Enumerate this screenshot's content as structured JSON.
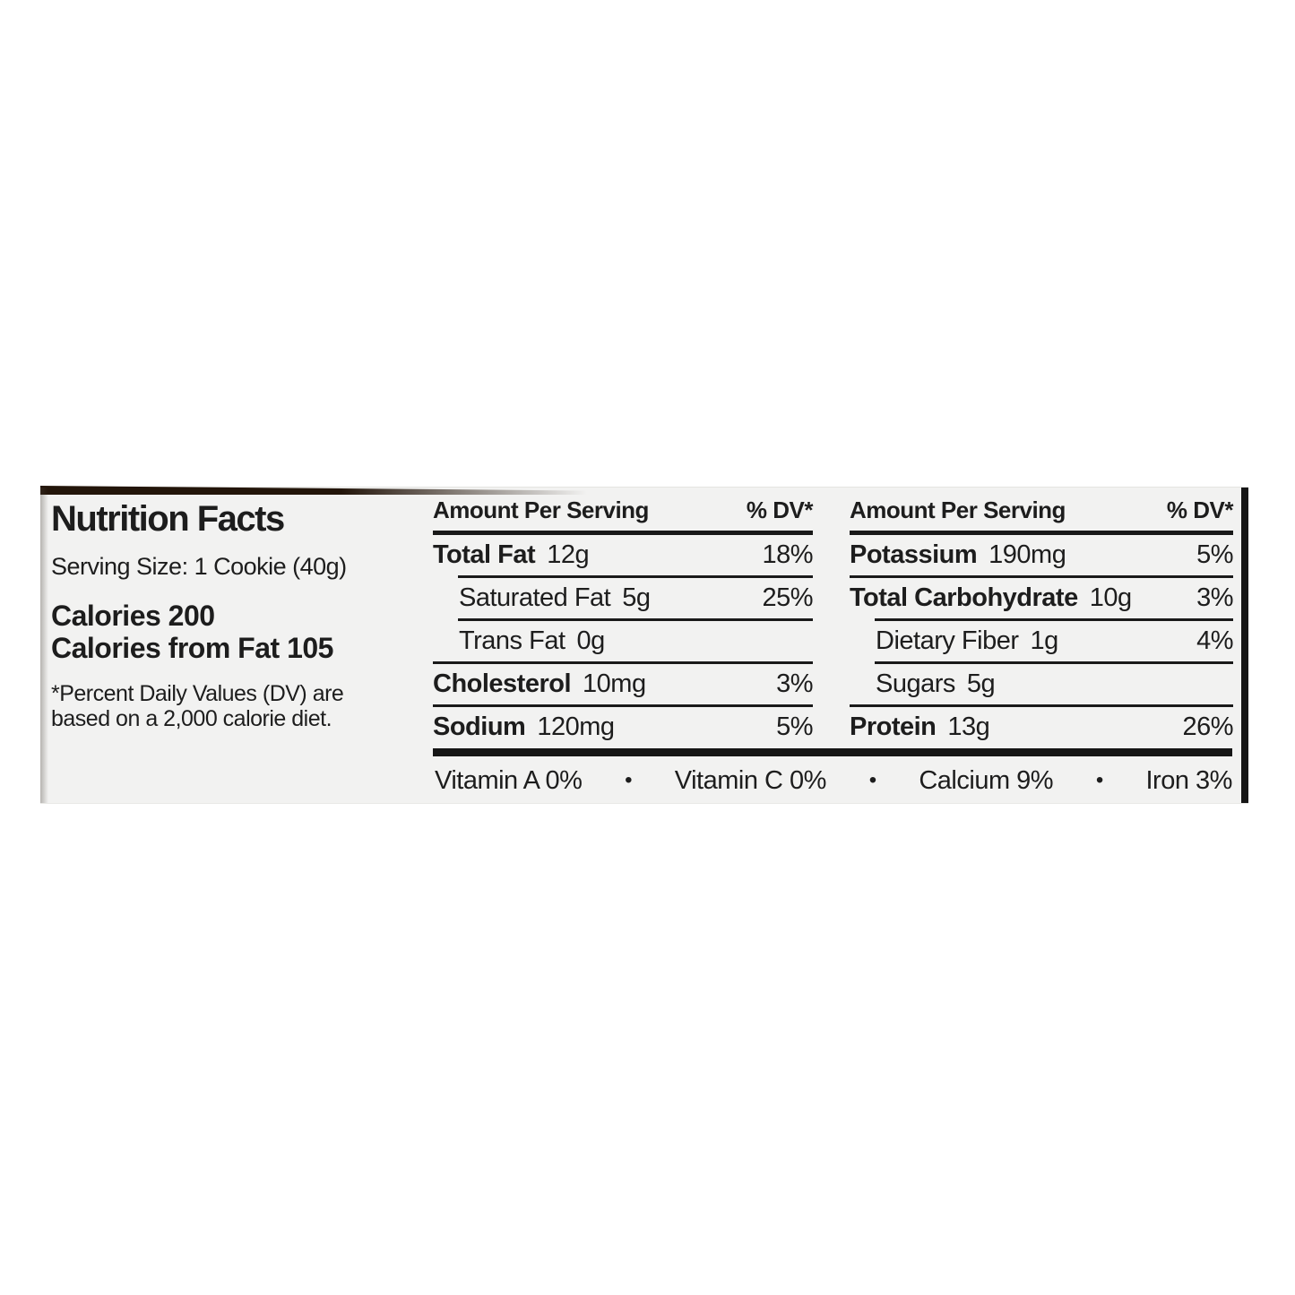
{
  "label": {
    "title": "Nutrition Facts",
    "serving_size": "Serving Size: 1 Cookie (40g)",
    "calories": "Calories 200",
    "calories_from_fat": "Calories from Fat 105",
    "footnote_line1": "*Percent Daily Values (DV) are",
    "footnote_line2": "based on a 2,000 calorie diet.",
    "bullet_char": "•",
    "columns": [
      {
        "header": {
          "amount": "Amount Per Serving",
          "dv": "% DV*"
        },
        "rows": [
          {
            "label": "Total Fat",
            "value": "12g",
            "dv": "18%"
          },
          {
            "label": "Saturated Fat",
            "value": "5g",
            "dv": "25%"
          },
          {
            "label": "Trans Fat",
            "value": "0g",
            "dv": ""
          },
          {
            "label": "Cholesterol",
            "value": "10mg",
            "dv": "3%"
          },
          {
            "label": "Sodium",
            "value": "120mg",
            "dv": "5%"
          }
        ]
      },
      {
        "header": {
          "amount": "Amount Per Serving",
          "dv": "% DV*"
        },
        "rows": [
          {
            "label": "Potassium",
            "value": "190mg",
            "dv": "5%"
          },
          {
            "label": "Total Carbohydrate",
            "value": "10g",
            "dv": "3%"
          },
          {
            "label": "Dietary Fiber",
            "value": "1g",
            "dv": "4%"
          },
          {
            "label": "Sugars",
            "value": "5g",
            "dv": ""
          },
          {
            "label": "Protein",
            "value": "13g",
            "dv": "26%"
          }
        ]
      }
    ],
    "micronutrients": [
      {
        "label": "Vitamin A",
        "value": "0%"
      },
      {
        "label": "Vitamin C",
        "value": "0%"
      },
      {
        "label": "Calcium",
        "value": "9%"
      },
      {
        "label": "Iron",
        "value": "3%"
      }
    ],
    "colors": {
      "label_background": "#f2f2f1",
      "text": "#1d1d1d",
      "rule": "#191919",
      "package_edge": "#23150a"
    }
  }
}
